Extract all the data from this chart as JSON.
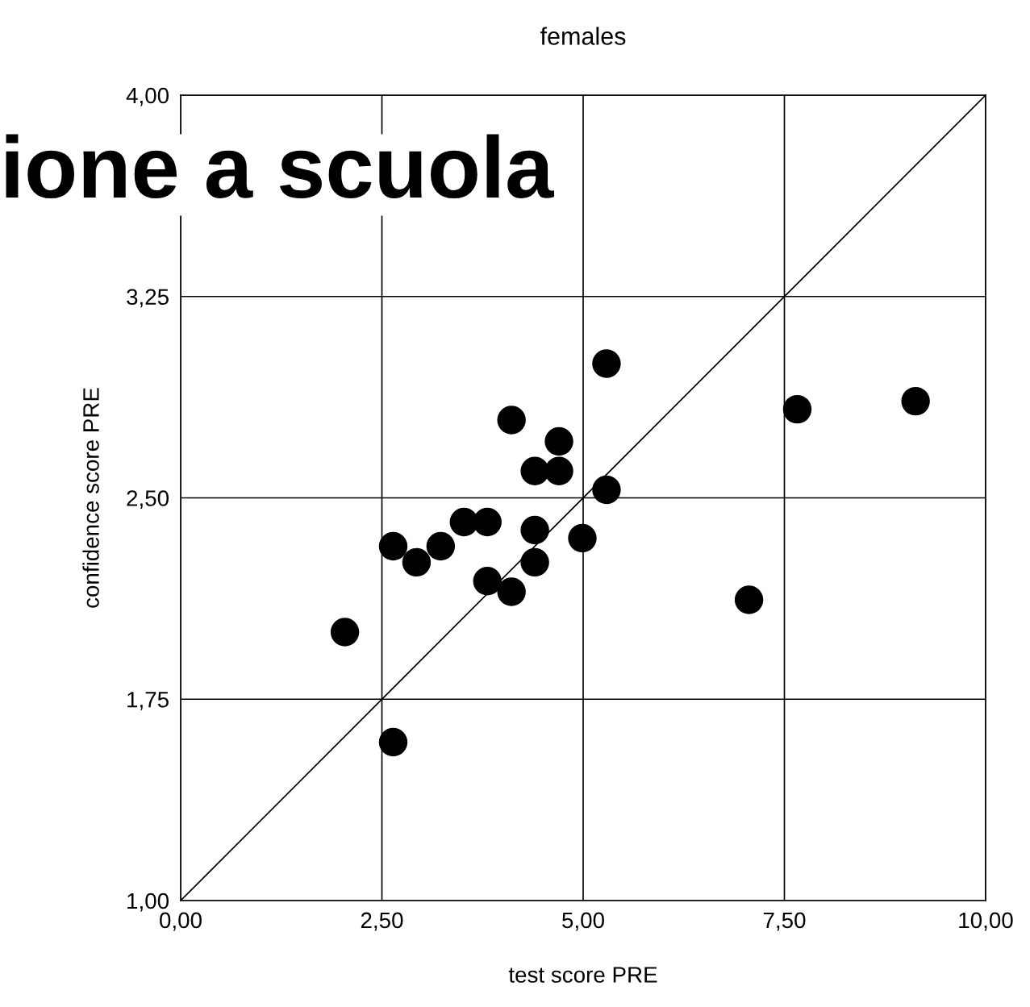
{
  "chart_data": {
    "type": "scatter",
    "title": "females",
    "xlabel": "test score PRE",
    "ylabel": "confidence score PRE",
    "annotations": [
      "ione a scuola"
    ],
    "xlim": [
      0,
      10
    ],
    "ylim": [
      1,
      4
    ],
    "xticks": [
      {
        "value": 0,
        "label": "0,00"
      },
      {
        "value": 2.5,
        "label": "2,50"
      },
      {
        "value": 5,
        "label": "5,00"
      },
      {
        "value": 7.5,
        "label": "7,50"
      },
      {
        "value": 10,
        "label": "10,00"
      }
    ],
    "yticks": [
      {
        "value": 1,
        "label": "1,00"
      },
      {
        "value": 1.75,
        "label": "1,75"
      },
      {
        "value": 2.5,
        "label": "2,50"
      },
      {
        "value": 3.25,
        "label": "3,25"
      },
      {
        "value": 4,
        "label": "4,00"
      }
    ],
    "grid": true,
    "series": [
      {
        "marker": "circle",
        "color": "#000000",
        "x": [
          2.04,
          2.64,
          2.64,
          2.93,
          3.23,
          3.52,
          3.81,
          3.81,
          4.11,
          4.11,
          4.4,
          4.4,
          4.4,
          4.7,
          4.7,
          4.99,
          5.29,
          5.29,
          7.06,
          7.66,
          9.13
        ],
        "values": [
          2.0,
          1.59,
          2.32,
          2.26,
          2.32,
          2.41,
          2.41,
          2.19,
          2.15,
          2.79,
          2.26,
          2.38,
          2.6,
          2.6,
          2.71,
          2.35,
          3.0,
          2.53,
          2.12,
          2.83,
          2.86
        ]
      },
      {
        "type": "line",
        "color": "#000000",
        "x": [
          0,
          10
        ],
        "values": [
          1,
          4
        ]
      }
    ]
  }
}
